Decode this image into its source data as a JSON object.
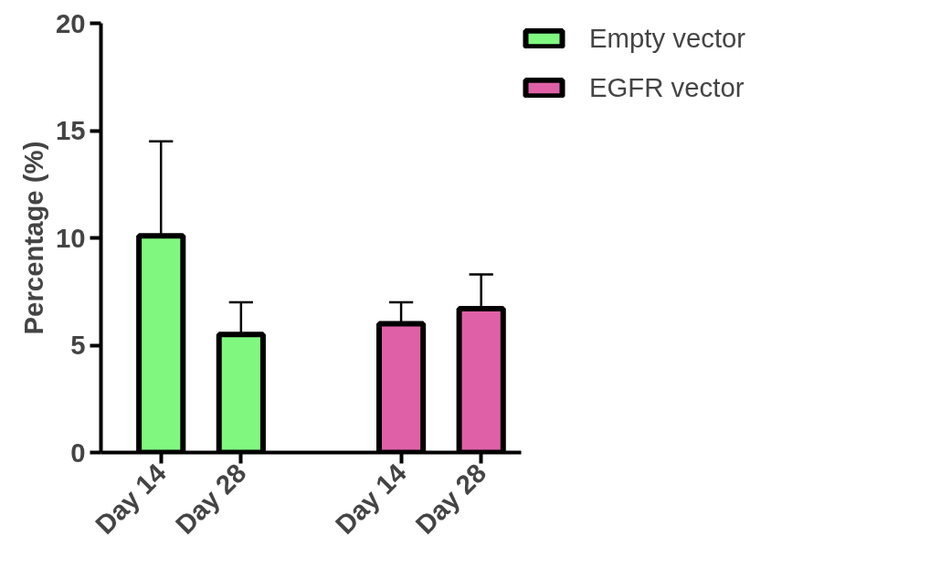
{
  "chart_data": {
    "type": "bar",
    "ylabel": "Percentage (%)",
    "categories": [
      "Day 14",
      "Day 28",
      null,
      "Day 14",
      "Day 28"
    ],
    "ylim": [
      0,
      20
    ],
    "yticks": [
      0,
      5,
      10,
      15,
      20
    ],
    "grid": false,
    "legend": "top right",
    "series": [
      {
        "name": "Empty vector",
        "color": "#80f880",
        "values": [
          10.1,
          5.5,
          null,
          null,
          null
        ],
        "errors": [
          [
            10.1,
            14.5
          ],
          [
            5.5,
            7.0
          ],
          null,
          null,
          null
        ]
      },
      {
        "name": "EGFR vector",
        "color": "#e060a8",
        "values": [
          null,
          null,
          null,
          6.0,
          6.7
        ],
        "errors": [
          null,
          null,
          null,
          [
            6.0,
            7.0
          ],
          [
            6.7,
            8.3
          ]
        ]
      }
    ]
  }
}
